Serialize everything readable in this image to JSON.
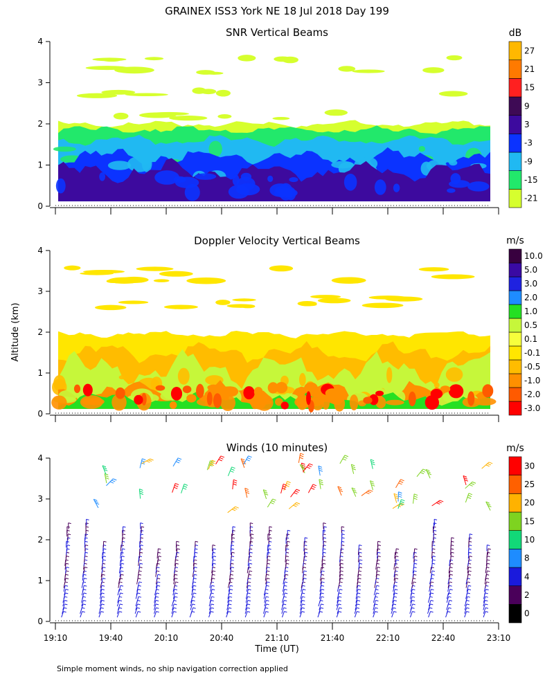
{
  "figure_title": "GRAINEX ISS3 York NE  18 Jul 2018 Day 199",
  "footnote": "Simple moment winds, no ship navigation correction applied",
  "y_axis_label": "Altitude (km)",
  "x_axis_label": "Time (UT)",
  "chart_data": [
    {
      "type": "heatmap",
      "title": "SNR Vertical Beams",
      "ylabel": "Altitude (km)",
      "ylim": [
        0,
        4
      ],
      "yticks": [
        "0",
        "1",
        "2",
        "3",
        "4"
      ],
      "xlim_hours": [
        19.1667,
        23.1667
      ],
      "colorbar": {
        "unit": "dB",
        "levels": [
          "-21",
          "-15",
          "-9",
          "-3",
          "3",
          "9",
          "15",
          "21",
          "27"
        ],
        "colors": [
          "#d6ff2e",
          "#22e86b",
          "#20b9f2",
          "#0b33ff",
          "#3d0a9e",
          "#3e0a55",
          "#ff2020",
          "#ff7a00",
          "#ffb800"
        ]
      },
      "layers": [
        {
          "label": "-21",
          "color": "#d6ff2e",
          "base_top_km": 2.0,
          "amp_km": 0.1,
          "patches_km": [
            3.55,
            3.3,
            2.75,
            2.2
          ]
        },
        {
          "label": "-15",
          "color": "#22e86b",
          "base_top_km": 1.85,
          "amp_km": 0.12
        },
        {
          "label": "-9",
          "color": "#20b9f2",
          "base_top_km": 1.6,
          "amp_km": 0.15
        },
        {
          "label": "-3",
          "color": "#0b33ff",
          "base_top_km": 1.2,
          "amp_km": 0.25
        },
        {
          "label": "3",
          "color": "#3d0a9e",
          "base_top_km": 0.85,
          "amp_km": 0.3
        }
      ]
    },
    {
      "type": "heatmap",
      "title": "Doppler Velocity Vertical Beams",
      "ylabel": "Altitude (km)",
      "ylim": [
        0,
        4
      ],
      "yticks": [
        "0",
        "1",
        "2",
        "3",
        "4"
      ],
      "xlim_hours": [
        19.1667,
        23.1667
      ],
      "colorbar": {
        "unit": "m/s",
        "levels": [
          "-3.0",
          "-2.0",
          "-1.0",
          "-0.5",
          "-0.1",
          "0.1",
          "0.5",
          "1.0",
          "2.0",
          "3.0",
          "5.0",
          "10.0"
        ],
        "colors": [
          "#ff0000",
          "#ff5a00",
          "#ff9000",
          "#ffbc00",
          "#ffe600",
          "#f7ff3c",
          "#c6f73a",
          "#25e022",
          "#1e8cff",
          "#1f22e0",
          "#3a0aa3",
          "#38003f"
        ]
      },
      "layers": [
        {
          "label": "-0.1",
          "color": "#ffe600",
          "base_top_km": 1.95,
          "amp_km": 0.1,
          "patches_km": [
            3.5,
            3.3,
            2.8,
            2.65
          ]
        },
        {
          "label": "-0.5",
          "color": "#ffbc00",
          "base_top_km": 1.5,
          "amp_km": 0.3
        },
        {
          "label": "0.5",
          "color": "#c6f73a",
          "base_top_km": 1.1,
          "amp_km": 0.5
        },
        {
          "label": "-1.0",
          "color": "#ff9000",
          "base_top_km": 0.55,
          "amp_km": 0.3
        },
        {
          "label": "1.0",
          "color": "#25e022",
          "base_top_km": 0.35,
          "amp_km": 0.2
        }
      ]
    },
    {
      "type": "scatter",
      "title": "Winds (10 minutes)",
      "ylabel": "Altitude (km)",
      "ylim": [
        0,
        4
      ],
      "yticks": [
        "0",
        "1",
        "2",
        "3",
        "4"
      ],
      "x_tick_labels": [
        "19:10",
        "19:40",
        "20:10",
        "20:40",
        "21:10",
        "21:40",
        "22:10",
        "22:40",
        "23:10"
      ],
      "xlim_hours": [
        19.1667,
        23.1667
      ],
      "interval_minutes": 10,
      "colorbar": {
        "unit": "m/s",
        "levels": [
          "0",
          "2",
          "4",
          "8",
          "10",
          "15",
          "20",
          "25",
          "30"
        ],
        "colors": [
          "#000000",
          "#4a005a",
          "#1a1adc",
          "#1e8cff",
          "#12d878",
          "#7ed320",
          "#ffb200",
          "#ff6000",
          "#ff0000"
        ]
      },
      "wind_profile": {
        "low_level_speed_range_ms": [
          2,
          8
        ],
        "upper_level_speed_range_ms": [
          10,
          30
        ],
        "max_altitude_km": 4.0
      }
    }
  ]
}
